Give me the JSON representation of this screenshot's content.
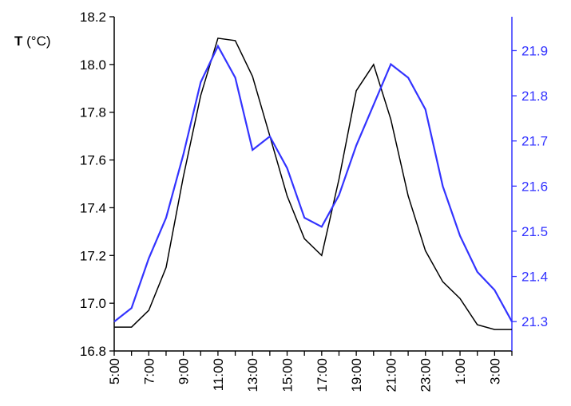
{
  "chart_data": {
    "type": "line",
    "ylabel_bold": "T",
    "ylabel_unit": " (°C)",
    "x_categories": [
      "5:00",
      "6:00",
      "7:00",
      "8:00",
      "9:00",
      "10:00",
      "11:00",
      "12:00",
      "13:00",
      "14:00",
      "15:00",
      "16:00",
      "17:00",
      "18:00",
      "19:00",
      "20:00",
      "21:00",
      "22:00",
      "23:00",
      "0:00",
      "1:00",
      "2:00",
      "3:00",
      "4:00"
    ],
    "x_tick_labels": [
      "5:00",
      "7:00",
      "9:00",
      "11:00",
      "13:00",
      "15:00",
      "17:00",
      "19:00",
      "21:00",
      "23:00",
      "1:00",
      "3:00"
    ],
    "left_axis": {
      "ylim": [
        16.8,
        18.2
      ],
      "ticks": [
        "16.8",
        "17.0",
        "17.2",
        "17.4",
        "17.6",
        "17.8",
        "18.0",
        "18.2"
      ],
      "tick_values": [
        16.8,
        17.0,
        17.2,
        17.4,
        17.6,
        17.8,
        18.0,
        18.2
      ],
      "color": "#000000"
    },
    "right_axis": {
      "ylim": [
        21.235,
        21.975
      ],
      "ticks": [
        "21.3",
        "21.4",
        "21.5",
        "21.6",
        "21.7",
        "21.8",
        "21.9"
      ],
      "tick_values": [
        21.3,
        21.4,
        21.5,
        21.6,
        21.7,
        21.8,
        21.9
      ],
      "color": "#3333ff"
    },
    "series": [
      {
        "axis": "left",
        "color": "#000000",
        "values": [
          16.9,
          16.9,
          16.97,
          17.15,
          17.53,
          17.87,
          18.11,
          18.1,
          17.95,
          17.7,
          17.45,
          17.27,
          17.2,
          17.52,
          17.89,
          18.0,
          17.77,
          17.45,
          17.22,
          17.09,
          17.02,
          16.91,
          16.89,
          16.89
        ]
      },
      {
        "axis": "right",
        "color": "#3333ff",
        "values": [
          21.3,
          21.33,
          21.44,
          21.53,
          21.67,
          21.83,
          21.91,
          21.84,
          21.68,
          21.71,
          21.64,
          21.53,
          21.51,
          21.58,
          21.69,
          21.78,
          21.87,
          21.84,
          21.77,
          21.6,
          21.49,
          21.41,
          21.37,
          21.3
        ]
      }
    ],
    "grid": false,
    "legend": "none"
  }
}
